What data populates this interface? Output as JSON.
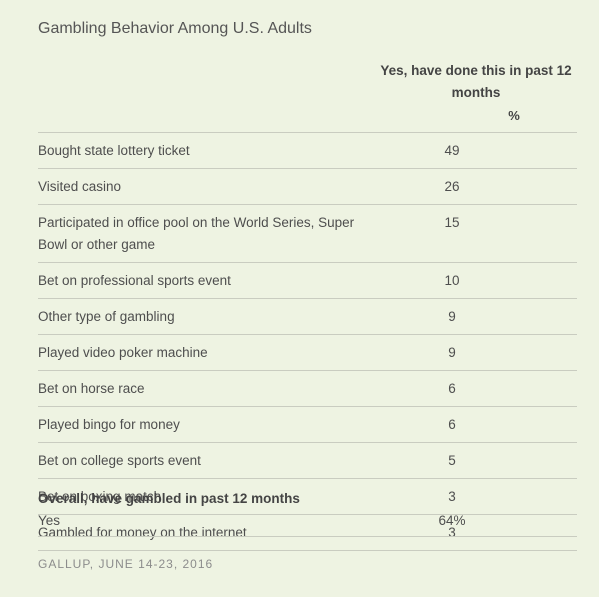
{
  "chart_data": {
    "type": "table",
    "title": "Gambling Behavior Among U.S. Adults",
    "column_header": "Yes, have done this in past 12 months",
    "unit": "%",
    "rows": [
      {
        "label": "Bought state lottery ticket",
        "value": "49"
      },
      {
        "label": "Visited casino",
        "value": "26"
      },
      {
        "label": "Participated in office pool on the World Series, Super Bowl or other game",
        "value": "15"
      },
      {
        "label": "Bet on professional sports event",
        "value": "10"
      },
      {
        "label": "Other type of gambling",
        "value": "9"
      },
      {
        "label": "Played video poker machine",
        "value": "9"
      },
      {
        "label": "Bet on horse race",
        "value": "6"
      },
      {
        "label": "Played bingo for money",
        "value": "6"
      },
      {
        "label": "Bet on college sports event",
        "value": "5"
      },
      {
        "label": "Bet on boxing match",
        "value": "3"
      },
      {
        "label": "Gambled for money on the internet",
        "value": "3"
      }
    ],
    "overall": {
      "label": "Overall, have gambled in past 12 months",
      "sub_label": "Yes",
      "value": "64%"
    },
    "source": "GALLUP, JUNE 14-23, 2016"
  }
}
